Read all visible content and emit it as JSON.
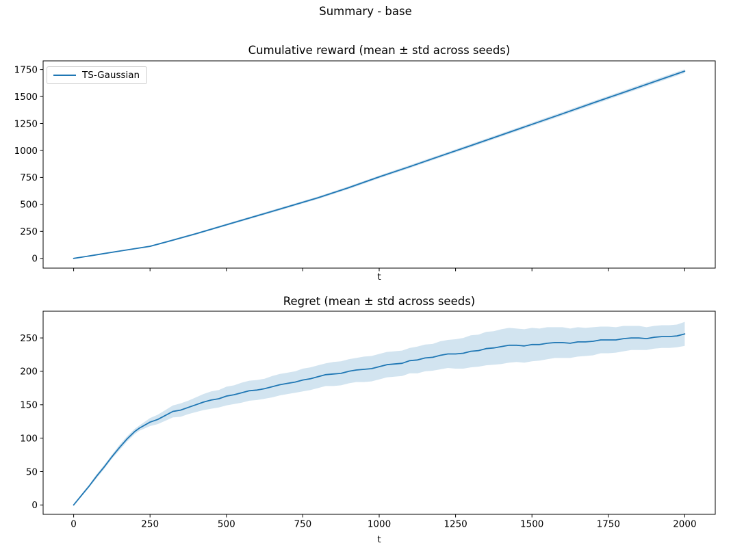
{
  "figure": {
    "suptitle": "Summary - base",
    "background_color": "#ffffff",
    "text_color": "#000000"
  },
  "chart_data": [
    {
      "type": "line",
      "title": "Cumulative reward (mean ± std across seeds)",
      "xlabel": "t",
      "ylabel": "",
      "legend": {
        "position": "upper left",
        "entries": [
          {
            "label": "TS-Gaussian"
          }
        ]
      },
      "line_color": "#1f77b4",
      "band_alpha": 0.2,
      "grid": false,
      "xlim": [
        -100,
        2100
      ],
      "ylim": [
        -90,
        1830
      ],
      "xticks": [
        0,
        250,
        500,
        750,
        1000,
        1250,
        1500,
        1750,
        2000
      ],
      "show_xtick_labels": false,
      "yticks": [
        0,
        250,
        500,
        750,
        1000,
        1250,
        1500,
        1750
      ],
      "x": [
        0,
        50,
        100,
        150,
        200,
        250,
        300,
        400,
        500,
        600,
        700,
        800,
        900,
        1000,
        1100,
        1200,
        1300,
        1400,
        1500,
        1600,
        1700,
        1800,
        1900,
        2000
      ],
      "mean": [
        0,
        22,
        45,
        68,
        90,
        112,
        150,
        228,
        312,
        395,
        478,
        562,
        655,
        755,
        850,
        948,
        1045,
        1143,
        1242,
        1340,
        1440,
        1538,
        1637,
        1735
      ],
      "std": [
        1,
        3,
        4,
        5,
        6,
        7,
        8,
        9,
        10,
        11,
        12,
        12,
        13,
        13,
        14,
        14,
        15,
        15,
        16,
        16,
        17,
        17,
        18,
        18
      ]
    },
    {
      "type": "line",
      "title": "Regret (mean ± std across seeds)",
      "xlabel": "t",
      "ylabel": "",
      "legend": null,
      "line_color": "#1f77b4",
      "band_alpha": 0.2,
      "grid": false,
      "xlim": [
        -100,
        2100
      ],
      "ylim": [
        -14,
        290
      ],
      "xticks": [
        0,
        250,
        500,
        750,
        1000,
        1250,
        1500,
        1750,
        2000
      ],
      "show_xtick_labels": true,
      "yticks": [
        0,
        50,
        100,
        150,
        200,
        250
      ],
      "x": [
        0,
        25,
        50,
        75,
        100,
        125,
        150,
        175,
        200,
        215,
        250,
        275,
        300,
        325,
        350,
        375,
        400,
        425,
        450,
        475,
        500,
        525,
        550,
        575,
        600,
        625,
        650,
        675,
        700,
        725,
        750,
        775,
        800,
        825,
        850,
        875,
        900,
        925,
        950,
        975,
        1000,
        1025,
        1050,
        1075,
        1100,
        1125,
        1150,
        1175,
        1200,
        1225,
        1250,
        1275,
        1300,
        1325,
        1350,
        1375,
        1400,
        1425,
        1450,
        1475,
        1500,
        1525,
        1550,
        1575,
        1600,
        1625,
        1650,
        1675,
        1700,
        1725,
        1750,
        1775,
        1800,
        1825,
        1850,
        1875,
        1900,
        1925,
        1950,
        1975,
        2000
      ],
      "mean": [
        0,
        14,
        28,
        43,
        57,
        72,
        86,
        99,
        110,
        115,
        124,
        128,
        134,
        140,
        142,
        146,
        150,
        154,
        157,
        159,
        163,
        165,
        168,
        171,
        172,
        174,
        177,
        180,
        182,
        184,
        187,
        189,
        192,
        195,
        196,
        197,
        200,
        202,
        203,
        204,
        207,
        210,
        211,
        212,
        216,
        217,
        220,
        221,
        224,
        226,
        226,
        227,
        230,
        231,
        234,
        235,
        237,
        239,
        239,
        238,
        240,
        240,
        242,
        243,
        243,
        242,
        244,
        244,
        245,
        247,
        247,
        247,
        249,
        250,
        250,
        249,
        251,
        252,
        252,
        253,
        256
      ],
      "std": [
        1,
        2,
        2,
        3,
        3,
        3,
        4,
        4,
        4,
        4,
        6,
        7,
        8,
        9,
        10,
        10,
        11,
        12,
        13,
        13,
        14,
        14,
        15,
        15,
        15,
        15,
        16,
        16,
        16,
        16,
        17,
        17,
        17,
        17,
        18,
        18,
        18,
        18,
        19,
        19,
        19,
        19,
        19,
        19,
        19,
        20,
        20,
        20,
        21,
        21,
        22,
        23,
        24,
        24,
        25,
        25,
        26,
        26,
        25,
        25,
        25,
        24,
        24,
        23,
        23,
        22,
        22,
        21,
        21,
        20,
        20,
        19,
        19,
        18,
        18,
        17,
        17,
        17,
        17,
        17,
        18
      ]
    }
  ]
}
